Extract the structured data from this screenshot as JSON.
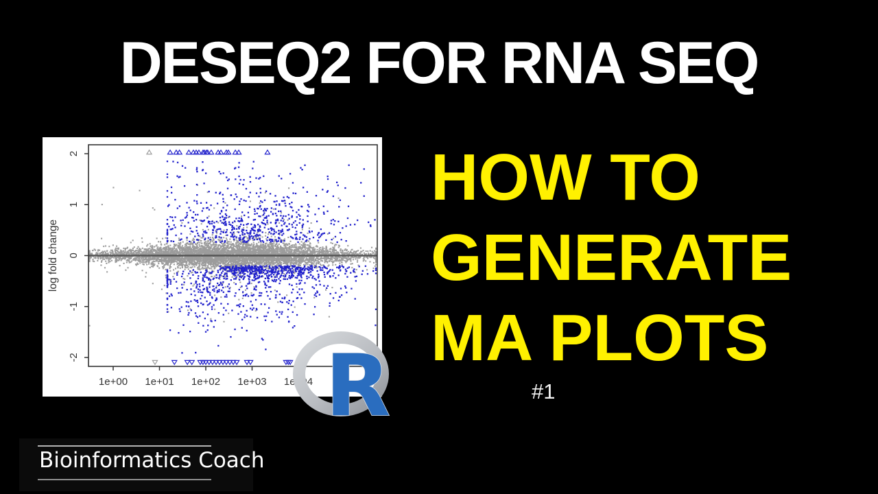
{
  "title": "DESEQ2 FOR RNA SEQ",
  "headline": {
    "lines": [
      "HOW TO",
      "GENERATE",
      "MA PLOTS"
    ],
    "color": "#FFF100"
  },
  "episode_label": "#1",
  "brand": "Bioinformatics Coach",
  "r_logo_letter": "R",
  "colors": {
    "background": "#000000",
    "title_text": "#FFFFFF",
    "headline_text": "#FFF100",
    "r_logo_blue": "#2A6DBF",
    "r_logo_ring_light": "#D2D5D9",
    "r_logo_ring_dark": "#94989E"
  },
  "chart_data": {
    "type": "scatter",
    "subtype": "MA plot (DESeq2 plotMA)",
    "title": "",
    "xlabel": "",
    "ylabel": "log fold change",
    "x_axis_scale": "log10",
    "x_tick_labels": [
      "1e+00",
      "1e+01",
      "1e+02",
      "1e+03",
      "1e+04"
    ],
    "x_tick_decades": [
      0,
      1,
      2,
      3,
      4
    ],
    "xlim_decades": [
      -0.53,
      5.69
    ],
    "y_ticks": [
      -2,
      -1,
      0,
      1,
      2
    ],
    "ylim": [
      -2.175,
      2.175
    ],
    "zero_line_y": 0,
    "grid": "off",
    "colors": {
      "nonsig": "#9C9C9C",
      "sig": "#2121CC",
      "zero_line": "#555555",
      "axis": "#333333"
    },
    "series": [
      {
        "name": "non-significant genes",
        "marker": "dot",
        "color_key": "nonsig",
        "n": 6200,
        "x_log10_mean": 2.5,
        "x_log10_sd": 1.35,
        "y_center": 0,
        "y_sigma_base": 0.028,
        "y_sigma_peak": 0.105,
        "y_sigma_peak_at_decade": 2.8
      },
      {
        "name": "significant genes (padj < 0.1)",
        "marker": "dot",
        "color_key": "sig",
        "n": 1500,
        "x_log10_mean": 3.0,
        "x_log10_sd": 1.05,
        "up_fraction": 0.42,
        "up_band_start": 0.26,
        "down_band_center": -0.25,
        "y_range": [
          -1.97,
          1.97
        ]
      }
    ],
    "clipped_top": {
      "y": 2,
      "marker": "open-triangle-up",
      "gray_x": [
        6
      ],
      "blue_x": [
        17,
        23,
        27,
        43,
        54,
        62,
        71,
        87,
        93,
        103,
        110,
        131,
        185,
        212,
        278,
        308,
        435,
        515,
        2150
      ]
    },
    "clipped_bottom": {
      "y": -2,
      "marker": "open-triangle-down",
      "gray_x": [
        8
      ],
      "blue_x": [
        21,
        40,
        50,
        76,
        87,
        100,
        118,
        140,
        167,
        198,
        235,
        278,
        330,
        392,
        465,
        776,
        920,
        5400,
        6050,
        6650
      ]
    }
  }
}
